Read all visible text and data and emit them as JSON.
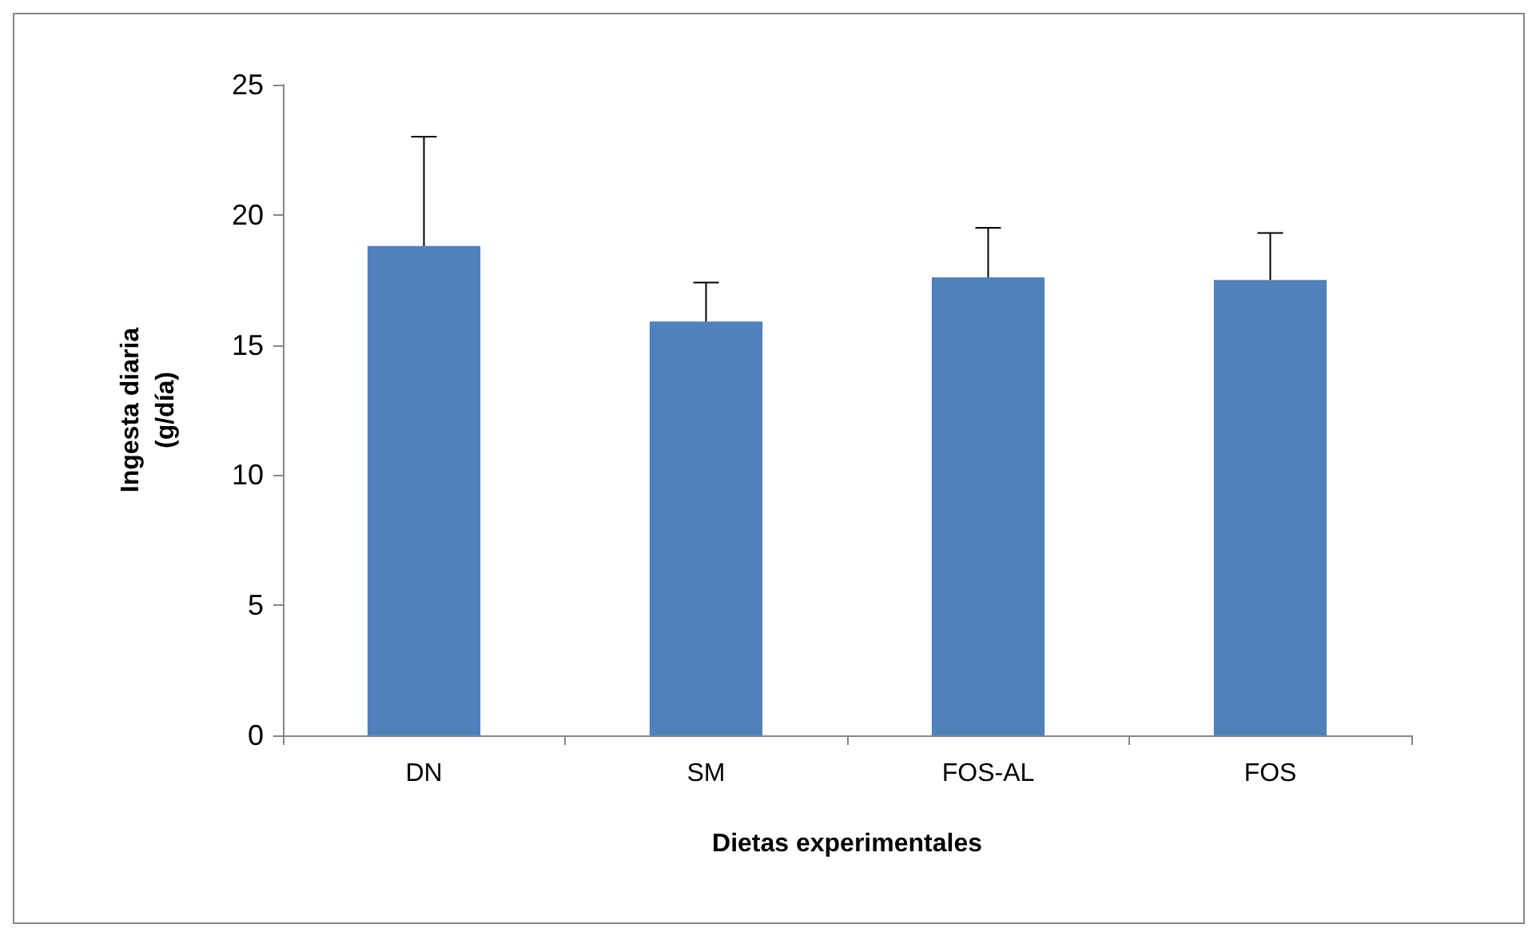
{
  "chart_data": {
    "type": "bar",
    "xlabel": "Dietas experimentales",
    "ylabel": "Ingesta diaria\n(g/día)",
    "categories": [
      "DN",
      "SM",
      "FOS-AL",
      "FOS"
    ],
    "values": [
      18.8,
      15.9,
      17.6,
      17.5
    ],
    "errors": [
      [
        18.8,
        23.0
      ],
      [
        15.9,
        17.4
      ],
      [
        17.6,
        19.5
      ],
      [
        17.5,
        19.3
      ]
    ],
    "color": "#4f81bd",
    "ylim": [
      0,
      25
    ],
    "yticks": [
      0,
      5,
      10,
      15,
      20,
      25
    ],
    "grid": false
  }
}
